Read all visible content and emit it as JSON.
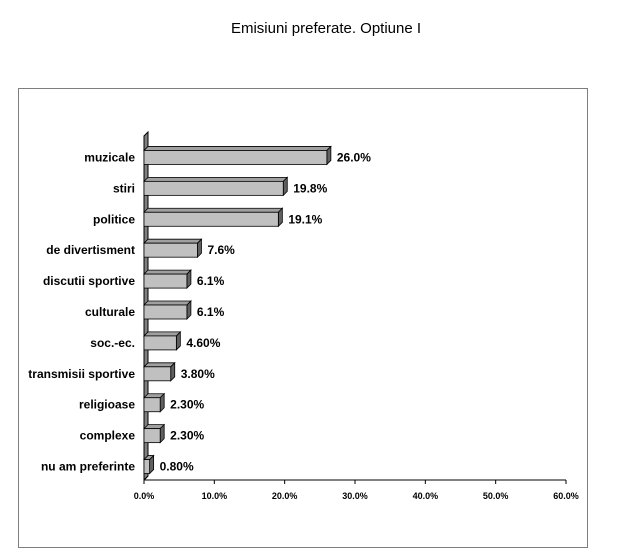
{
  "chart_data": {
    "type": "bar",
    "orientation": "horizontal",
    "title": "Emisiuni preferate. Optiune I",
    "categories": [
      "muzicale",
      "stiri",
      "politice",
      "de divertisment",
      "discutii sportive",
      "culturale",
      "soc.-ec.",
      "transmisii sportive",
      "religioase",
      "complexe",
      "nu am preferinte"
    ],
    "values": [
      26.0,
      19.8,
      19.1,
      7.6,
      6.1,
      6.1,
      4.6,
      3.8,
      2.3,
      2.3,
      0.8
    ],
    "data_labels": [
      "26.0%",
      "19.8%",
      "19.1%",
      "7.6%",
      "6.1%",
      "6.1%",
      "4.60%",
      "3.80%",
      "2.30%",
      "2.30%",
      "0.80%"
    ],
    "xlim": [
      0,
      60
    ],
    "x_ticks": [
      0,
      10,
      20,
      30,
      40,
      50,
      60
    ],
    "x_tick_labels": [
      "0.0%",
      "10.0%",
      "20.0%",
      "30.0%",
      "40.0%",
      "50.0%",
      "60.0%"
    ],
    "xlabel": "",
    "ylabel": "",
    "grid": false,
    "legend": "none",
    "style": "3d",
    "colors": {
      "bar_face": "#c0c0c0",
      "bar_top": "#a0a0a0",
      "bar_side": "#606060",
      "bar_stroke": "#000000",
      "axis": "#000000",
      "frame": "#7f7f7f"
    }
  }
}
